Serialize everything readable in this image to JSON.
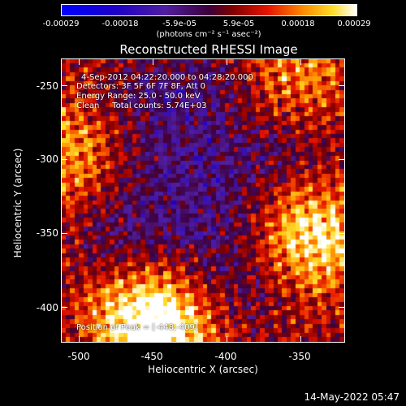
{
  "chart_data": {
    "type": "heatmap",
    "title": "Reconstructed RHESSI Image",
    "xlabel": "Heliocentric X (arcsec)",
    "ylabel": "Heliocentric Y (arcsec)",
    "xlim": [
      -512,
      -320
    ],
    "ylim": [
      -424,
      -232
    ],
    "x_ticks": [
      "-500",
      "-450",
      "-400",
      "-350"
    ],
    "x_tick_values": [
      -500,
      -450,
      -400,
      -350
    ],
    "y_ticks": [
      "-250",
      "-300",
      "-350",
      "-400"
    ],
    "y_tick_values": [
      -250,
      -300,
      -350,
      -400
    ],
    "colorbar": {
      "ticks": [
        "-0.00029",
        "-0.00018",
        "-5.9e-05",
        "5.9e-05",
        "0.00018",
        "0.00029"
      ],
      "unit_label": "(photons cm⁻² s⁻¹ asec⁻²)",
      "range": [
        -0.00029,
        0.00029
      ],
      "colormap": "rainbow-to-hot"
    },
    "annotations": {
      "time": "4-Sep-2012 04:22:20.000 to 04:28:20.000",
      "detectors": "Detectors: 3F 5F 6F 7F 8F, Att 0",
      "energy": "Energy Range: 25.0 - 50.0 keV",
      "clean": "Clean     Total counts: 5.74E+03",
      "peak": "Position of Peak = [-448,-409]"
    },
    "sources": [
      {
        "x": -448,
        "y": -409,
        "relative_intensity": 1.0
      },
      {
        "x": -345,
        "y": -350,
        "relative_intensity": 0.85
      },
      {
        "x": -500,
        "y": -300,
        "relative_intensity": 0.55
      },
      {
        "x": -360,
        "y": -250,
        "relative_intensity": 0.45
      }
    ]
  },
  "footer": {
    "timestamp": "14-May-2022 05:47"
  }
}
